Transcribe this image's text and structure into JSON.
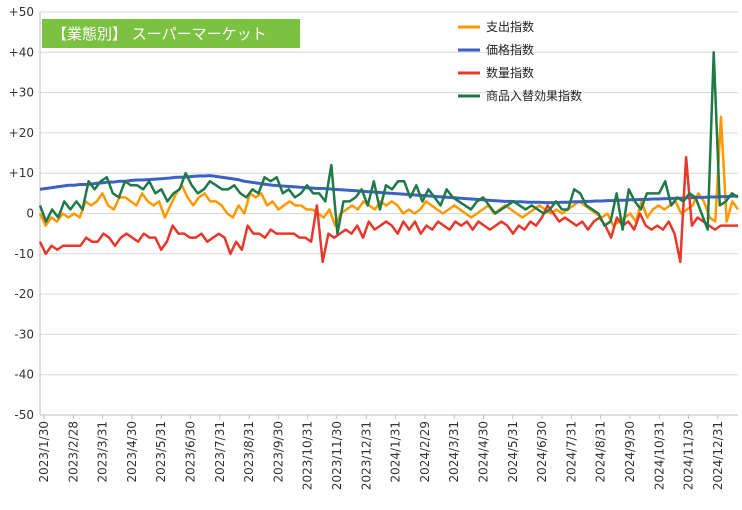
{
  "chart_data": {
    "type": "line",
    "title": "【業態別】 スーパーマーケット",
    "xlabel": "",
    "ylabel": "",
    "ylim": [
      -50,
      50
    ],
    "y_ticks": [
      "+50",
      "+40",
      "+30",
      "+20",
      "+10",
      "0",
      "-10",
      "-20",
      "-30",
      "-40",
      "-50"
    ],
    "y_tick_values": [
      50,
      40,
      30,
      20,
      10,
      0,
      -10,
      -20,
      -30,
      -40,
      -50
    ],
    "x_ticks": [
      "2023/1/30",
      "2023/2/28",
      "2023/3/31",
      "2023/4/30",
      "2023/5/31",
      "2023/6/30",
      "2023/7/31",
      "2023/8/31",
      "2023/9/30",
      "2023/10/31",
      "2023/11/30",
      "2023/12/31",
      "2024/1/31",
      "2024/2/29",
      "2024/3/31",
      "2024/4/30",
      "2024/5/31",
      "2024/6/30",
      "2024/7/31",
      "2024/8/31",
      "2024/9/30",
      "2024/10/31",
      "2024/11/30",
      "2024/12/31"
    ],
    "grid": "horizontal",
    "legend_position": "top-right",
    "series": [
      {
        "name": "支出指数",
        "color": "#ff9900",
        "values": [
          0,
          -3,
          -1,
          -2,
          0,
          -1,
          0,
          -1,
          3,
          2,
          3,
          5,
          2,
          1,
          4,
          4,
          3,
          2,
          5,
          3,
          2,
          3,
          -1,
          2,
          5,
          7,
          4,
          2,
          4,
          5,
          3,
          3,
          2,
          0,
          -1,
          2,
          0,
          5,
          4,
          5,
          2,
          3,
          1,
          2,
          3,
          2,
          2,
          1,
          1,
          0,
          -1,
          1,
          -3,
          0,
          1,
          2,
          1,
          3,
          2,
          1,
          3,
          2,
          3,
          2,
          0,
          1,
          0,
          1,
          3,
          2,
          1,
          0,
          1,
          2,
          1,
          0,
          -1,
          0,
          1,
          2,
          0,
          1,
          2,
          1,
          0,
          -1,
          0,
          1,
          2,
          1,
          0,
          1,
          0,
          1,
          2,
          3,
          2,
          1,
          0,
          -1,
          0,
          -3,
          -2,
          -1,
          0,
          -2,
          3,
          -1,
          1,
          2,
          1,
          2,
          3,
          0,
          1,
          2,
          5,
          3,
          -1,
          -2,
          24,
          -2,
          3,
          1
        ]
      },
      {
        "name": "価格指数",
        "color": "#3a62c6",
        "values": [
          6,
          6.2,
          6.4,
          6.6,
          6.8,
          7,
          7,
          7.2,
          7.2,
          7.3,
          7.5,
          7.6,
          7.8,
          7.8,
          8,
          8,
          8.2,
          8.3,
          8.3,
          8.4,
          8.5,
          8.6,
          8.7,
          8.8,
          9,
          9,
          9.1,
          9.2,
          9.3,
          9.3,
          9.4,
          9.2,
          9,
          8.8,
          8.6,
          8.4,
          8,
          7.8,
          7.6,
          7.4,
          7.2,
          7,
          6.9,
          6.8,
          6.7,
          6.6,
          6.5,
          6.4,
          6.3,
          6.2,
          6.2,
          6.1,
          6,
          5.9,
          5.8,
          5.7,
          5.6,
          5.5,
          5.4,
          5.3,
          5.2,
          5.1,
          5,
          4.9,
          4.8,
          4.7,
          4.6,
          4.5,
          4.4,
          4.3,
          4.2,
          4.1,
          4,
          3.9,
          3.8,
          3.7,
          3.6,
          3.5,
          3.4,
          3.3,
          3.2,
          3.1,
          3,
          3,
          2.9,
          2.9,
          2.8,
          2.8,
          2.8,
          2.7,
          2.7,
          2.7,
          2.8,
          2.8,
          2.9,
          2.9,
          3,
          3,
          3.1,
          3.1,
          3.2,
          3.2,
          3.3,
          3.3,
          3.4,
          3.4,
          3.5,
          3.5,
          3.6,
          3.6,
          3.7,
          3.7,
          3.8,
          3.8,
          3.9,
          3.9,
          4,
          4,
          4.1,
          4.1,
          4.2,
          4.2,
          4.3,
          4.3
        ]
      },
      {
        "name": "数量指数",
        "color": "#e6392b",
        "values": [
          -7,
          -10,
          -8,
          -9,
          -8,
          -8,
          -8,
          -8,
          -6,
          -7,
          -7,
          -5,
          -6,
          -8,
          -6,
          -5,
          -6,
          -7,
          -5,
          -6,
          -6,
          -9,
          -7,
          -3,
          -5,
          -5,
          -6,
          -6,
          -5,
          -7,
          -6,
          -5,
          -6,
          -10,
          -7,
          -9,
          -3,
          -5,
          -5,
          -6,
          -4,
          -5,
          -5,
          -5,
          -5,
          -6,
          -6,
          -7,
          2,
          -12,
          -5,
          -6,
          -5,
          -4,
          -5,
          -3,
          -6,
          -2,
          -4,
          -3,
          -2,
          -3,
          -5,
          -2,
          -4,
          -2,
          -5,
          -3,
          -4,
          -2,
          -3,
          -4,
          -2,
          -3,
          -2,
          -4,
          -2,
          -3,
          -4,
          -3,
          -2,
          -3,
          -5,
          -3,
          -4,
          -2,
          -3,
          -1,
          2,
          0,
          -2,
          -1,
          -2,
          -3,
          -2,
          -4,
          -2,
          -1,
          -3,
          -6,
          -1,
          -3,
          -2,
          -4,
          0,
          -3,
          -4,
          -3,
          -4,
          -2,
          -5,
          -12,
          14,
          -3,
          -1,
          -2,
          -3,
          -4,
          -3,
          -3,
          -3,
          -3
        ]
      },
      {
        "name": "商品入替効果指数",
        "color": "#1f7a48",
        "values": [
          2,
          -2,
          1,
          -1,
          3,
          1,
          3,
          1,
          8,
          6,
          8,
          9,
          5,
          4,
          8,
          7,
          7,
          6,
          8,
          5,
          6,
          3,
          5,
          6,
          10,
          7,
          5,
          6,
          8,
          7,
          6,
          6,
          7,
          5,
          4,
          6,
          5,
          9,
          8,
          9,
          5,
          6,
          4,
          5,
          7,
          5,
          5,
          3,
          12,
          -5,
          3,
          3,
          4,
          6,
          2,
          8,
          1,
          7,
          6,
          8,
          8,
          4,
          7,
          3,
          6,
          4,
          2,
          6,
          4,
          3,
          2,
          1,
          3,
          4,
          2,
          0,
          1,
          2,
          3,
          2,
          1,
          2,
          1,
          0,
          1,
          3,
          1,
          1,
          6,
          5,
          2,
          1,
          0,
          -3,
          -2,
          5,
          -4,
          6,
          3,
          1,
          5,
          5,
          5,
          8,
          2,
          4,
          3,
          5,
          4,
          0,
          -4,
          40,
          2,
          3,
          5,
          4
        ]
      }
    ]
  }
}
